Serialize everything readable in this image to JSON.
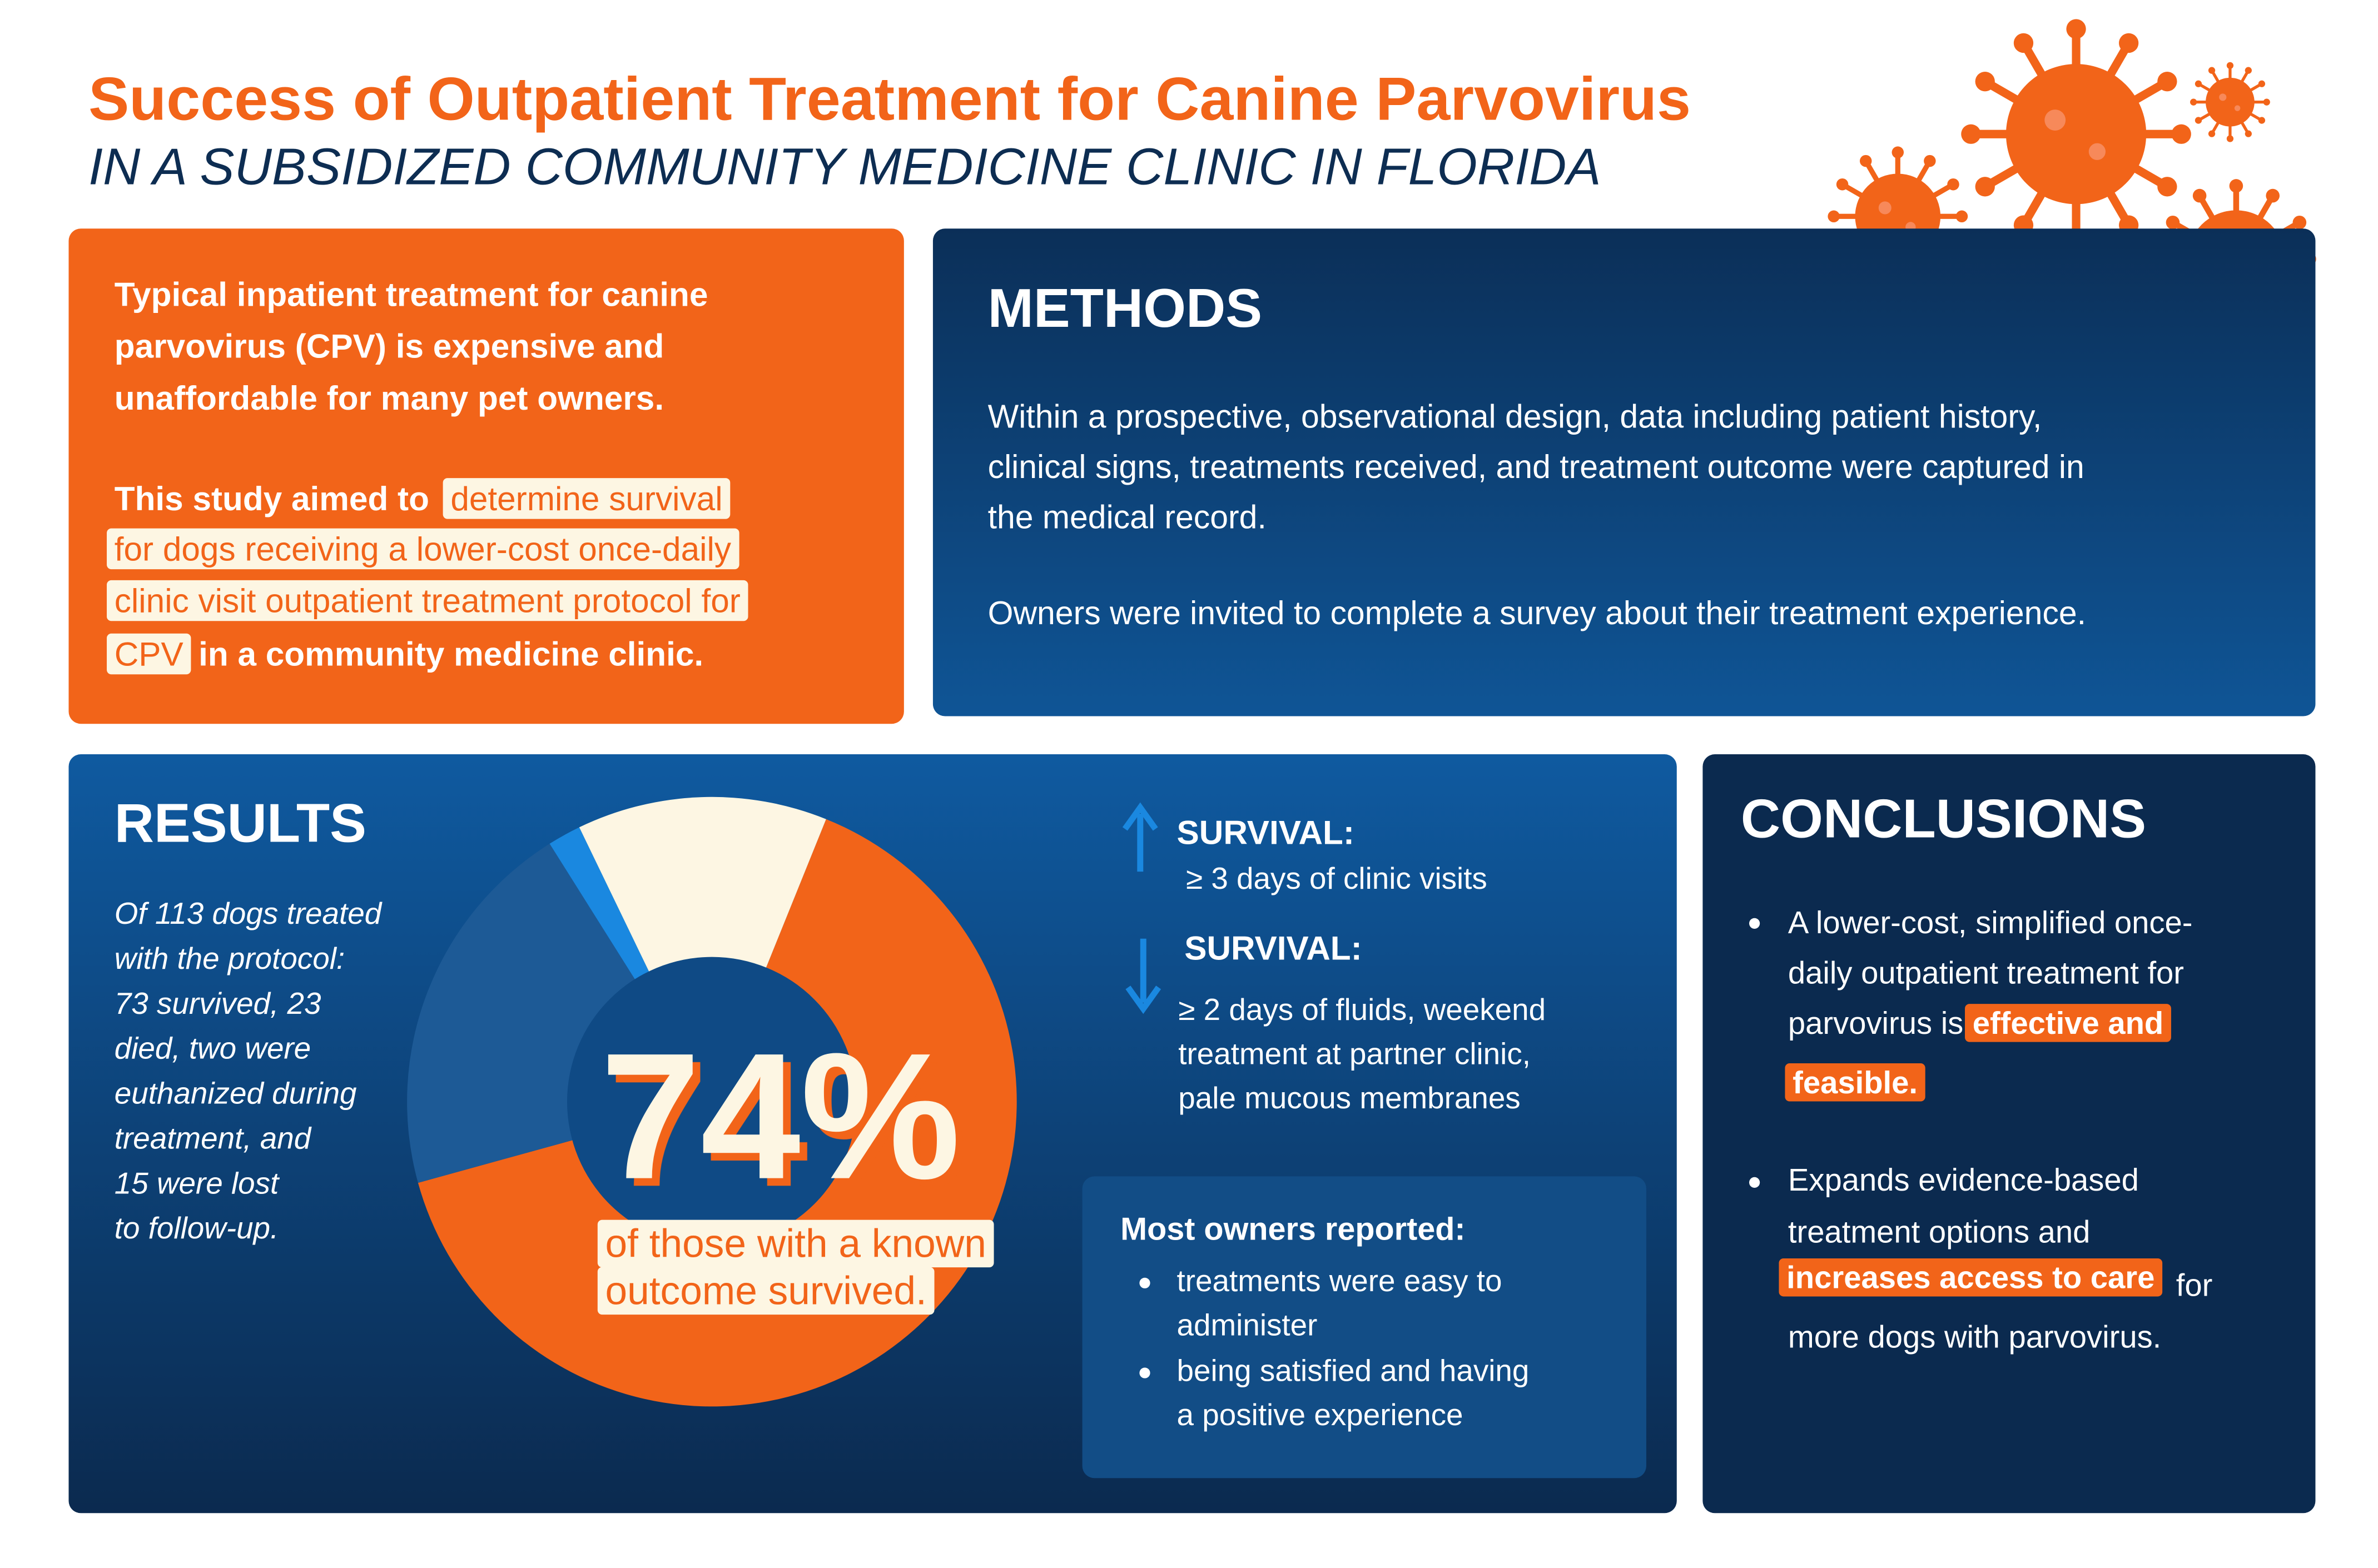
{
  "header": {
    "title": "Success of Outpatient Treatment for Canine Parvovirus",
    "subtitle": "IN A SUBSIDIZED COMMUNITY MEDICINE CLINIC IN FLORIDA"
  },
  "intro": {
    "lines": [
      "Typical inpatient treatment for canine",
      "parvovirus (CPV) is expensive and",
      "unaffordable for many pet owners."
    ],
    "aim_lead": "This study aimed to",
    "aim_highlight": [
      "determine survival",
      "for dogs receiving a lower-cost once-daily",
      "clinic visit outpatient treatment protocol for",
      "CPV"
    ],
    "aim_tail": "in a community medicine clinic."
  },
  "methods": {
    "heading": "METHODS",
    "paragraphs": [
      [
        "Within a prospective, observational design, data including patient history,",
        "clinical signs, treatments received, and treatment outcome were captured in",
        "the medical record."
      ],
      [
        "Owners were invited to complete a survey about their treatment experience."
      ]
    ]
  },
  "results": {
    "heading": "RESULTS",
    "summary": [
      "Of 113 dogs treated",
      "with the protocol:",
      "73 survived, 23",
      "died, two were",
      "euthanized during",
      "treatment, and",
      "15 were lost",
      "to follow-up."
    ],
    "donut": {
      "values": [
        73,
        23,
        2,
        15
      ],
      "colors": [
        "#f26419",
        "#1d5a96",
        "#1a88e0",
        "#fdf6e3"
      ]
    },
    "big_stat": "74%",
    "big_stat_caption": [
      "of those with a known",
      "outcome survived."
    ],
    "factors": [
      {
        "label": "SURVIVAL:",
        "lines": [
          "≥ 3 days of clinic visits"
        ]
      },
      {
        "label": "SURVIVAL:",
        "lines": [
          "≥ 2 days of fluids, weekend",
          "treatment at partner clinic,",
          "pale mucous membranes"
        ]
      }
    ],
    "owners": {
      "heading": "Most owners reported:",
      "items": [
        [
          "treatments were easy to",
          "administer"
        ],
        [
          "being satisfied and having",
          "a positive experience"
        ]
      ]
    }
  },
  "conclusions": {
    "heading": "CONCLUSIONS",
    "items": [
      {
        "lines": [
          "A  lower-cost, simplified once-",
          "daily outpatient treatment for",
          "parvovirus is"
        ],
        "highlight": [
          "effective and",
          "feasible."
        ]
      },
      {
        "lines": [
          "Expands evidence-based",
          "treatment options and"
        ],
        "highlight": [
          "increases access to care"
        ],
        "tail": [
          "for",
          "more dogs with parvovirus."
        ]
      }
    ]
  }
}
